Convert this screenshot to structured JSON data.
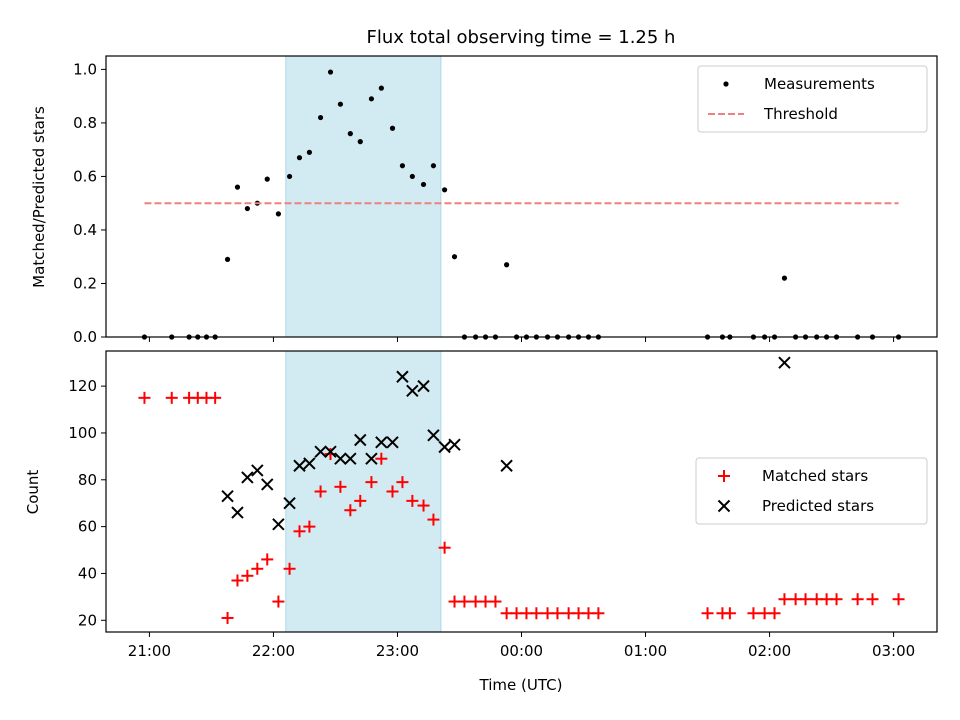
{
  "chart_data": [
    {
      "type": "scatter",
      "title": "Flux total observing time = 1.25 h",
      "xlabel": "",
      "ylabel": "Matched/Predicted stars",
      "x_unit": "hours since 21:00 UTC",
      "xlim": [
        -0.35,
        6.35
      ],
      "ylim": [
        0.0,
        1.05
      ],
      "yticks": [
        0.0,
        0.2,
        0.4,
        0.6,
        0.8,
        1.0
      ],
      "ytick_labels": [
        "0.0",
        "0.2",
        "0.4",
        "0.6",
        "0.8",
        "1.0"
      ],
      "xticks": [
        0,
        1,
        2,
        3,
        4,
        5,
        6
      ],
      "shaded_region": [
        1.1,
        2.35
      ],
      "shade_color": "#add8e6",
      "legend_position": "upper right",
      "series": [
        {
          "name": "Measurements",
          "marker": "dot",
          "color": "#000000",
          "x": [
            -0.04,
            0.18,
            0.32,
            0.39,
            0.46,
            0.53,
            0.63,
            0.71,
            0.79,
            0.87,
            0.95,
            1.04,
            1.13,
            1.21,
            1.29,
            1.38,
            1.46,
            1.54,
            1.62,
            1.7,
            1.79,
            1.87,
            1.96,
            2.04,
            2.12,
            2.21,
            2.29,
            2.38,
            2.46,
            2.54,
            2.63,
            2.71,
            2.79,
            2.88,
            2.96,
            3.04,
            3.12,
            3.21,
            3.29,
            3.38,
            3.46,
            3.54,
            3.62,
            4.5,
            4.62,
            4.68,
            4.87,
            4.96,
            5.04,
            5.12,
            5.21,
            5.29,
            5.38,
            5.46,
            5.54,
            5.71,
            5.83,
            6.04
          ],
          "y": [
            0.0,
            0.0,
            0.0,
            0.0,
            0.0,
            0.0,
            0.29,
            0.56,
            0.48,
            0.5,
            0.59,
            0.46,
            0.6,
            0.67,
            0.69,
            0.82,
            0.99,
            0.87,
            0.76,
            0.73,
            0.89,
            0.93,
            0.78,
            0.64,
            0.6,
            0.57,
            0.64,
            0.55,
            0.3,
            0.0,
            0.0,
            0.0,
            0.0,
            0.27,
            0.0,
            0.0,
            0.0,
            0.0,
            0.0,
            0.0,
            0.0,
            0.0,
            0.0,
            0.0,
            0.0,
            0.0,
            0.0,
            0.0,
            0.0,
            0.22,
            0.0,
            0.0,
            0.0,
            0.0,
            0.0,
            0.0,
            0.0,
            0.0
          ]
        },
        {
          "name": "Threshold",
          "marker": "dashed-line",
          "color": "#f08080",
          "x": [
            -0.04,
            6.04
          ],
          "y": [
            0.5,
            0.5
          ]
        }
      ]
    },
    {
      "type": "scatter",
      "title": "",
      "xlabel": "Time (UTC)",
      "ylabel": "Count",
      "x_unit": "hours since 21:00 UTC",
      "xlim": [
        -0.35,
        6.35
      ],
      "ylim": [
        15,
        135
      ],
      "yticks": [
        20,
        40,
        60,
        80,
        100,
        120
      ],
      "ytick_labels": [
        "20",
        "40",
        "60",
        "80",
        "100",
        "120"
      ],
      "xticks": [
        0,
        1,
        2,
        3,
        4,
        5,
        6
      ],
      "xtick_labels": [
        "21:00",
        "22:00",
        "23:00",
        "00:00",
        "01:00",
        "02:00",
        "03:00"
      ],
      "shaded_region": [
        1.1,
        2.35
      ],
      "shade_color": "#add8e6",
      "legend_position": "center right",
      "series": [
        {
          "name": "Matched stars",
          "marker": "plus",
          "color": "#ff0000",
          "x": [
            -0.04,
            0.18,
            0.32,
            0.39,
            0.46,
            0.53,
            0.63,
            0.71,
            0.79,
            0.87,
            0.95,
            1.04,
            1.13,
            1.21,
            1.29,
            1.38,
            1.46,
            1.54,
            1.62,
            1.7,
            1.79,
            1.87,
            1.96,
            2.04,
            2.12,
            2.21,
            2.29,
            2.38,
            2.46,
            2.54,
            2.63,
            2.71,
            2.79,
            2.88,
            2.96,
            3.04,
            3.12,
            3.21,
            3.29,
            3.38,
            3.46,
            3.54,
            3.62,
            4.5,
            4.62,
            4.68,
            4.87,
            4.96,
            5.04,
            5.12,
            5.21,
            5.29,
            5.38,
            5.46,
            5.54,
            5.71,
            5.83,
            6.04
          ],
          "y": [
            115,
            115,
            115,
            115,
            115,
            115,
            21,
            37,
            39,
            42,
            46,
            28,
            42,
            58,
            60,
            75,
            91,
            77,
            67,
            71,
            79,
            89,
            75,
            79,
            71,
            69,
            63,
            51,
            28,
            28,
            28,
            28,
            28,
            23,
            23,
            23,
            23,
            23,
            23,
            23,
            23,
            23,
            23,
            23,
            23,
            23,
            23,
            23,
            23,
            29,
            29,
            29,
            29,
            29,
            29,
            29,
            29,
            29
          ]
        },
        {
          "name": "Predicted stars",
          "marker": "x",
          "color": "#000000",
          "x": [
            0.63,
            0.71,
            0.79,
            0.87,
            0.95,
            1.04,
            1.13,
            1.21,
            1.29,
            1.38,
            1.46,
            1.54,
            1.62,
            1.7,
            1.79,
            1.87,
            1.96,
            2.04,
            2.12,
            2.21,
            2.29,
            2.38,
            2.46,
            2.88,
            5.12
          ],
          "y": [
            73,
            66,
            81,
            84,
            78,
            61,
            70,
            86,
            87,
            92,
            92,
            89,
            89,
            97,
            89,
            96,
            96,
            124,
            118,
            120,
            99,
            94,
            95,
            86,
            130
          ]
        }
      ]
    }
  ]
}
